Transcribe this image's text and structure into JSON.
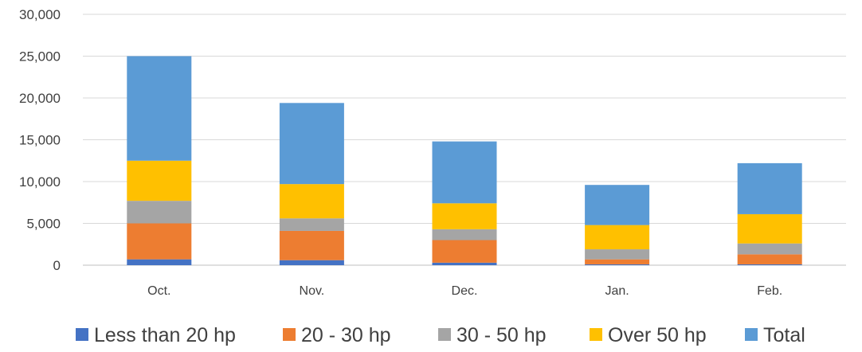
{
  "chart_data": {
    "type": "bar",
    "stacked": true,
    "categories": [
      "Oct.",
      "Nov.",
      "Dec.",
      "Jan.",
      "Feb."
    ],
    "series": [
      {
        "name": "Less than 20 hp",
        "color": "#4472C4",
        "values": [
          700,
          600,
          300,
          100,
          100
        ]
      },
      {
        "name": "20 - 30 hp",
        "color": "#ED7D31",
        "values": [
          4300,
          3500,
          2700,
          600,
          1200
        ]
      },
      {
        "name": "30 - 50 hp",
        "color": "#A5A5A5",
        "values": [
          2700,
          1500,
          1300,
          1200,
          1300
        ]
      },
      {
        "name": "Over 50 hp",
        "color": "#FFC000",
        "values": [
          4800,
          4100,
          3100,
          2900,
          3500
        ]
      },
      {
        "name": "Total",
        "color": "#5B9BD5",
        "values": [
          12500,
          9700,
          7400,
          4800,
          6100
        ]
      }
    ],
    "ylim": [
      0,
      30000
    ],
    "yticks": [
      "0",
      "5,000",
      "10,000",
      "15,000",
      "20,000",
      "25,000",
      "30,000"
    ],
    "grid": true,
    "legend": "bottom",
    "title": "",
    "xlabel": "",
    "ylabel": ""
  }
}
